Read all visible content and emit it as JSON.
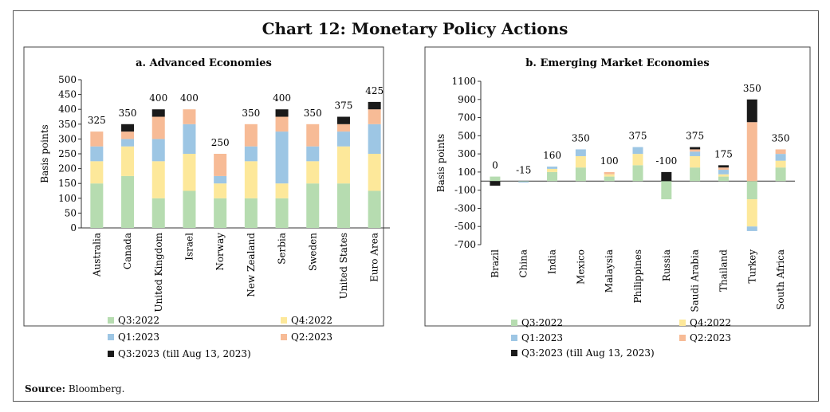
{
  "title": "Chart 12: Monetary Policy Actions",
  "source_label": "Source:",
  "source_text": "Bloomberg.",
  "colors": {
    "q3_2022": "#b6dcb0",
    "q4_2022": "#fde89a",
    "q1_2023": "#9dc6e4",
    "q2_2023": "#f7bb96",
    "q3_2023": "#1a1a1a"
  },
  "chart_data": [
    {
      "type": "bar",
      "stacked": true,
      "title": "a. Advanced Economies",
      "ylabel": "Basis points",
      "ylim": [
        0,
        500
      ],
      "yticks": [
        0,
        50,
        100,
        150,
        200,
        250,
        300,
        350,
        400,
        450,
        500
      ],
      "categories": [
        "Australia",
        "Canada",
        "United Kingdom",
        "Israel",
        "Norway",
        "New Zealand",
        "Serbia",
        "Sweden",
        "United States",
        "Euro Area"
      ],
      "totals": [
        "325",
        "350",
        "400",
        "400",
        "250",
        "350",
        "400",
        "350",
        "375",
        "425"
      ],
      "series": [
        {
          "name": "Q3:2022",
          "values": [
            150,
            175,
            100,
            125,
            100,
            100,
            100,
            150,
            150,
            125
          ]
        },
        {
          "name": "Q4:2022",
          "values": [
            75,
            100,
            125,
            125,
            50,
            125,
            50,
            75,
            125,
            125
          ]
        },
        {
          "name": "Q1:2023",
          "values": [
            50,
            25,
            75,
            100,
            25,
            50,
            175,
            50,
            50,
            100
          ]
        },
        {
          "name": "Q2:2023",
          "values": [
            50,
            25,
            75,
            50,
            75,
            75,
            50,
            75,
            25,
            50
          ]
        },
        {
          "name": "Q3:2023 (till Aug 13, 2023)",
          "values": [
            0,
            25,
            25,
            0,
            0,
            0,
            25,
            0,
            25,
            25
          ]
        }
      ],
      "legend": "bottom"
    },
    {
      "type": "bar",
      "stacked": true,
      "title": "b. Emerging Market Economies",
      "ylabel": "Basis points",
      "ylim": [
        -700,
        1100
      ],
      "yticks": [
        -700,
        -500,
        -300,
        -100,
        100,
        300,
        500,
        700,
        900,
        1100
      ],
      "categories": [
        "Brazil",
        "China",
        "India",
        "Mexico",
        "Malaysia",
        "Philippines",
        "Russia",
        "Saudi Arabia",
        "Thailand",
        "Turkey",
        "South Africa"
      ],
      "totals": [
        "0",
        "-15",
        "160",
        "350",
        "100",
        "375",
        "-100",
        "375",
        "175",
        "350",
        "350"
      ],
      "series": [
        {
          "name": "Q3:2022",
          "values": [
            50,
            -5,
            100,
            150,
            50,
            175,
            -200,
            150,
            50,
            -200,
            150
          ]
        },
        {
          "name": "Q4:2022",
          "values": [
            0,
            0,
            35,
            125,
            25,
            125,
            0,
            125,
            25,
            -300,
            75
          ]
        },
        {
          "name": "Q1:2023",
          "values": [
            0,
            -10,
            25,
            75,
            0,
            75,
            0,
            50,
            50,
            -50,
            75
          ]
        },
        {
          "name": "Q2:2023",
          "values": [
            0,
            0,
            0,
            0,
            25,
            0,
            0,
            25,
            25,
            650,
            50
          ]
        },
        {
          "name": "Q3:2023 (till Aug 13, 2023)",
          "values": [
            -50,
            0,
            0,
            0,
            0,
            0,
            100,
            25,
            25,
            250,
            0
          ]
        }
      ],
      "legend": "bottom"
    }
  ]
}
